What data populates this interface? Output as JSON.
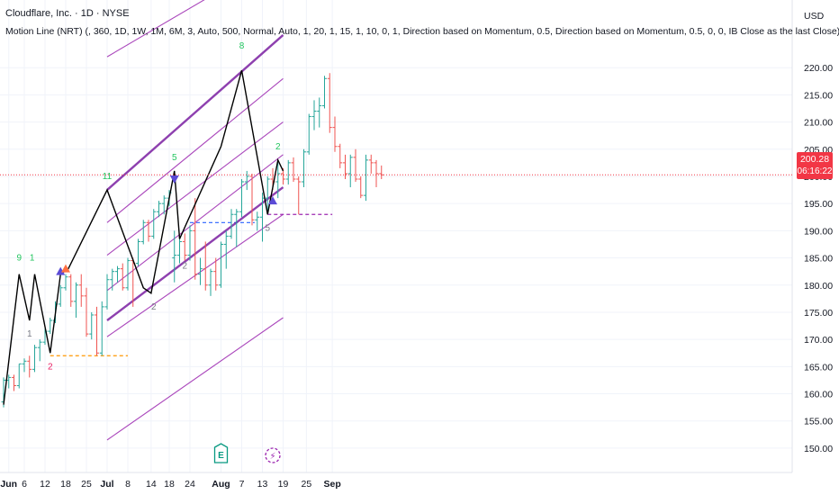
{
  "header": {
    "symbol_line": "Cloudflare, Inc. · 1D · NYSE",
    "indicator_line": "Motion Line (NRT) (, 360, 1D, 1W, 1M, 6M, 3, Auto, 500, Normal, Auto, 1, 20, 1, 15, 1, 10, 0, 1, Direction based on Momentum, 0.5, Direction based on Momentum, 0.5, 0, 0, IB Close as the last Close)"
  },
  "price_axis": {
    "currency": "USD",
    "last_price": "200.28",
    "countdown": "06:16:22"
  },
  "colors": {
    "up": "#26a69a",
    "down": "#ef5350",
    "channel": "#9c27b0",
    "channel_bold": "#7b1fa2",
    "motion_line": "#000000",
    "price_line": "#f23645"
  },
  "chart_data": {
    "type": "candlestick",
    "symbol": "NET",
    "interval": "1D",
    "ylim": [
      148,
      225
    ],
    "y_ticks": [
      "220.00",
      "215.00",
      "210.00",
      "205.00",
      "200.00",
      "195.00",
      "190.00",
      "185.00",
      "180.00",
      "175.00",
      "170.00",
      "165.00",
      "160.00",
      "155.00",
      "150.00"
    ],
    "x_ticks": [
      "Jun",
      "6",
      "12",
      "18",
      "25",
      "Jul",
      "8",
      "14",
      "18",
      "24",
      "Aug",
      "7",
      "13",
      "19",
      "25",
      "Sep"
    ],
    "last_price": 200.28,
    "candles": [
      [
        158.5,
        163,
        157.5,
        162.5
      ],
      [
        162.5,
        163.5,
        161,
        163
      ],
      [
        163,
        163.5,
        160.5,
        161.5
      ],
      [
        161.5,
        165.5,
        161,
        165.5
      ],
      [
        165.5,
        166.5,
        164,
        166
      ],
      [
        166,
        167,
        163,
        164.5
      ],
      [
        164.5,
        169,
        164,
        168.5
      ],
      [
        168.5,
        170,
        166,
        169.5
      ],
      [
        169.5,
        172,
        169,
        171.5
      ],
      [
        171.5,
        174,
        171,
        173.5
      ],
      [
        173.5,
        177,
        173,
        176.5
      ],
      [
        176.5,
        180,
        176,
        179.5
      ],
      [
        179.5,
        182,
        179,
        181.5
      ],
      [
        181.5,
        182,
        176,
        177
      ],
      [
        177,
        180.5,
        174,
        180
      ],
      [
        180,
        182,
        176,
        178
      ],
      [
        178,
        179.5,
        170.5,
        171
      ],
      [
        171,
        175,
        170,
        174.5
      ],
      [
        174.5,
        176,
        167,
        167.5
      ],
      [
        167.5,
        177,
        167,
        176
      ],
      [
        176,
        182,
        175.5,
        181
      ],
      [
        181,
        183,
        179,
        182.5
      ],
      [
        182.5,
        183.5,
        180.5,
        183
      ],
      [
        183,
        184,
        179,
        179.5
      ],
      [
        179.5,
        185,
        179,
        184.5
      ],
      [
        184.5,
        185,
        176,
        184
      ],
      [
        184,
        188.5,
        183.5,
        188
      ],
      [
        188,
        192,
        187.5,
        191.5
      ],
      [
        191.5,
        192,
        188,
        189
      ],
      [
        189,
        194,
        188.5,
        193.5
      ],
      [
        193.5,
        195.5,
        192.5,
        195
      ],
      [
        195,
        196.5,
        193,
        196
      ],
      [
        196,
        197.5,
        194.5,
        197
      ],
      [
        185,
        190,
        180.5,
        185.5
      ],
      [
        185.5,
        189,
        184,
        188
      ],
      [
        188,
        189.5,
        184.5,
        185.5
      ],
      [
        185.5,
        191,
        184.5,
        190
      ],
      [
        190,
        196,
        181,
        182
      ],
      [
        182,
        185,
        180,
        183
      ],
      [
        183,
        188,
        179,
        180
      ],
      [
        180,
        183,
        178,
        182.5
      ],
      [
        182.5,
        185,
        179,
        180
      ],
      [
        180,
        188,
        179.5,
        187.5
      ],
      [
        187.5,
        190,
        183,
        189
      ],
      [
        189,
        194,
        188.5,
        193
      ],
      [
        193,
        194,
        187,
        193.5
      ],
      [
        193.5,
        199.5,
        192.5,
        199
      ],
      [
        199,
        201,
        197.5,
        200
      ],
      [
        200,
        200.5,
        191,
        192
      ],
      [
        192,
        193.5,
        190,
        192.5
      ],
      [
        192.5,
        197,
        188,
        196
      ],
      [
        196,
        200,
        193,
        199.5
      ],
      [
        199.5,
        201.5,
        197.5,
        199
      ],
      [
        199,
        202.5,
        196,
        200.5
      ],
      [
        200.5,
        201.5,
        198.5,
        199.5
      ],
      [
        199.5,
        203,
        198.5,
        202.5
      ],
      [
        202.5,
        203.5,
        199,
        199.5
      ],
      [
        199.5,
        200,
        193,
        199
      ],
      [
        199,
        205,
        198,
        204.5
      ],
      [
        204.5,
        211.5,
        204,
        211
      ],
      [
        211,
        214,
        208.5,
        212
      ],
      [
        212,
        214.5,
        209,
        213
      ],
      [
        213,
        218.5,
        212.5,
        218
      ],
      [
        218,
        219,
        208,
        209
      ],
      [
        209,
        211,
        204.5,
        205.5
      ],
      [
        205.5,
        206,
        201.5,
        202.5
      ],
      [
        202.5,
        204,
        199.5,
        200.5
      ],
      [
        200.5,
        204,
        198,
        203.5
      ],
      [
        203.5,
        205,
        199,
        199.5
      ],
      [
        199.5,
        200,
        196,
        196.5
      ],
      [
        196.5,
        204,
        195.5,
        203
      ],
      [
        203,
        204,
        200.5,
        202.5
      ],
      [
        202.5,
        203,
        198,
        200.5
      ],
      [
        200.5,
        202,
        199.5,
        200.28
      ]
    ],
    "motion_line": [
      [
        "May 31",
        158
      ],
      [
        "Jun 5",
        182
      ],
      [
        "Jun 7",
        173.5
      ],
      [
        "Jun 10",
        182
      ],
      [
        "Jun 13",
        167.5
      ],
      [
        "Jun 17",
        182
      ],
      [
        "Jun 19",
        183
      ],
      [
        "Jul 1",
        197.5
      ],
      [
        "Jul 11",
        179.5
      ],
      [
        "Jul 14",
        178.5
      ],
      [
        "Jul 19",
        201
      ],
      [
        "Jul 22",
        188.5
      ],
      [
        "Aug 1",
        205.5
      ],
      [
        "Aug 7",
        219.5
      ],
      [
        "Aug 14",
        193
      ],
      [
        "Aug 16",
        203
      ],
      [
        "Aug 19",
        201
      ]
    ],
    "pivot_labels": [
      {
        "text": "9",
        "date": "Jun 5",
        "price": 184.5,
        "kind": "top"
      },
      {
        "text": "1",
        "date": "Jun 9",
        "price": 184.5,
        "kind": "top"
      },
      {
        "text": "1",
        "date": "Jun 7",
        "price": 170.5,
        "kind": "bottom"
      },
      {
        "text": "2",
        "date": "Jun 13",
        "price": 164.5,
        "kind": "bottom"
      },
      {
        "text": "11",
        "date": "Jul 1",
        "price": 199.5,
        "kind": "top"
      },
      {
        "text": "2",
        "date": "Jul 15",
        "price": 175.5,
        "kind": "bottom"
      },
      {
        "text": "5",
        "date": "Jul 19",
        "price": 203,
        "kind": "top"
      },
      {
        "text": "2",
        "date": "Jul 23",
        "price": 183,
        "kind": "bottom"
      },
      {
        "text": "8",
        "date": "Aug 7",
        "price": 223.5,
        "kind": "top"
      },
      {
        "text": "2",
        "date": "Aug 16",
        "price": 205,
        "kind": "top"
      },
      {
        "text": "5",
        "date": "Aug 14",
        "price": 190,
        "kind": "bottom"
      }
    ],
    "channel": {
      "start_date": "Jul 1",
      "end_date": "Aug 19",
      "lines": [
        {
          "y0": 222,
          "y1": 241,
          "weight": "normal"
        },
        {
          "y0": 197.5,
          "y1": 226,
          "weight": "bold"
        },
        {
          "y0": 191.5,
          "y1": 218,
          "weight": "normal"
        },
        {
          "y0": 185.5,
          "y1": 210,
          "weight": "normal"
        },
        {
          "y0": 179,
          "y1": 204,
          "weight": "normal"
        },
        {
          "y0": 173.5,
          "y1": 198,
          "weight": "bold"
        },
        {
          "y0": 170.5,
          "y1": 193,
          "weight": "normal"
        }
      ],
      "lower_line": {
        "y0": 151.5,
        "y1": 174
      }
    },
    "support_lines": [
      {
        "from": "Jun 13",
        "to": "Jul 8",
        "price": 167,
        "color": "#ff9800"
      },
      {
        "from": "Jul 24",
        "to": "Aug 11",
        "price": 191.5,
        "color": "#2962ff"
      },
      {
        "from": "Aug 14",
        "to": "Sep 1",
        "price": 193,
        "color": "#9c27b0"
      }
    ],
    "markers": [
      {
        "shape": "triangle-up",
        "date": "Jun 17",
        "price": 182.5,
        "color": "#5b4bd6"
      },
      {
        "shape": "triangle-up",
        "date": "Jun 18",
        "price": 183,
        "color": "#ff7043"
      },
      {
        "shape": "triangle-down",
        "date": "Jul 19",
        "price": 199.5,
        "color": "#5b4bd6"
      },
      {
        "shape": "triangle-up",
        "date": "Aug 15",
        "price": 195.5,
        "color": "#5b4bd6"
      },
      {
        "shape": "earnings",
        "text": "E",
        "date": "Aug 1"
      },
      {
        "shape": "dividend",
        "text": "⚡",
        "date": "Aug 15"
      }
    ]
  }
}
